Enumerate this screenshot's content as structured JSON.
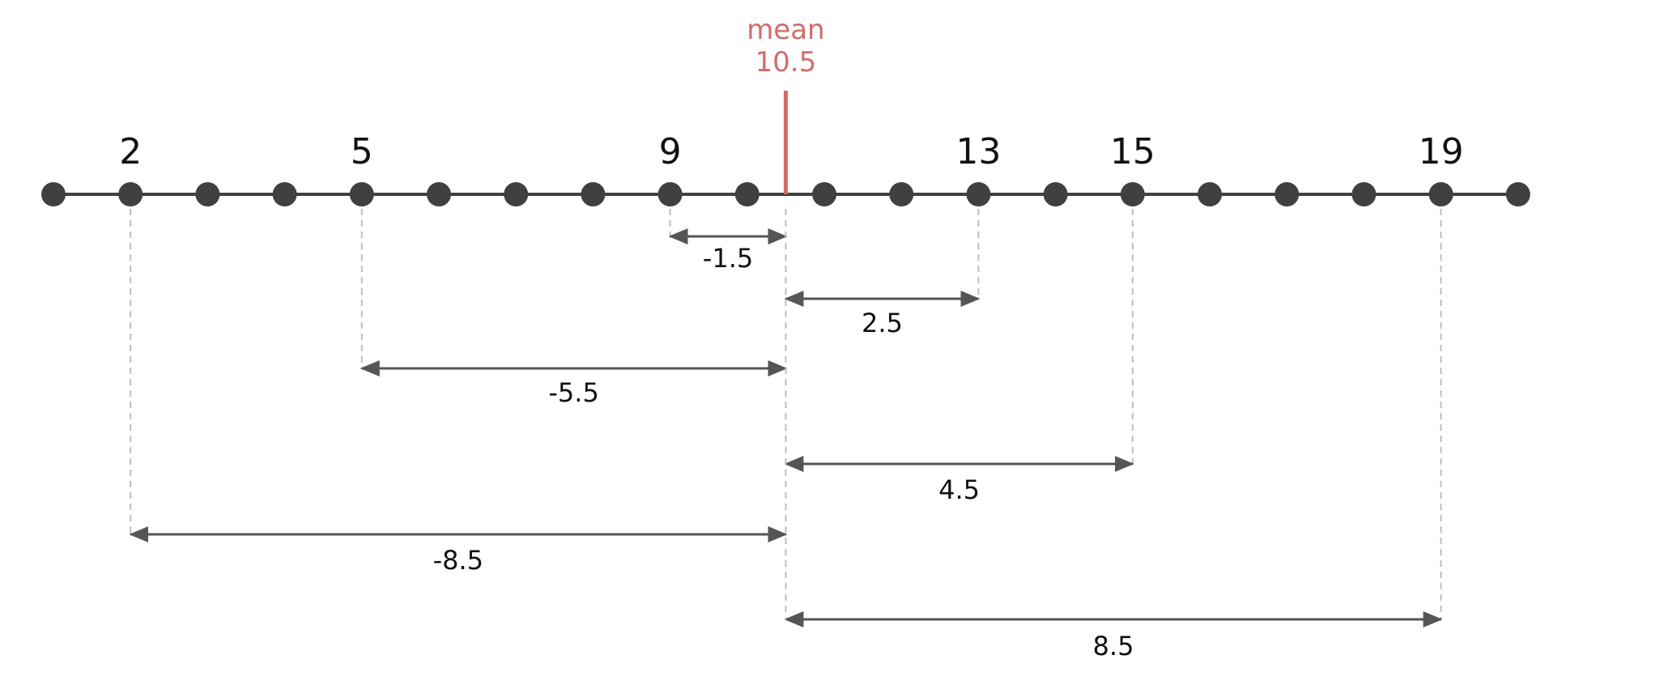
{
  "axis": {
    "min": 1,
    "max": 20
  },
  "values": [
    2,
    5,
    9,
    13,
    15,
    19
  ],
  "value_labels": [
    "2",
    "5",
    "9",
    "13",
    "15",
    "19"
  ],
  "mean": {
    "label": "mean",
    "value": 10.5,
    "value_text": "10.5"
  },
  "deviations": [
    {
      "from": 9,
      "label": "-1.5"
    },
    {
      "from": 13,
      "label": "2.5"
    },
    {
      "from": 5,
      "label": "-5.5"
    },
    {
      "from": 15,
      "label": "4.5"
    },
    {
      "from": 2,
      "label": "-8.5"
    },
    {
      "from": 19,
      "label": "8.5"
    }
  ],
  "colors": {
    "axis": "#404040",
    "mean": "#d36b6b",
    "arrow": "#555555",
    "dashed": "#bdbdbd",
    "text": "#111111"
  }
}
